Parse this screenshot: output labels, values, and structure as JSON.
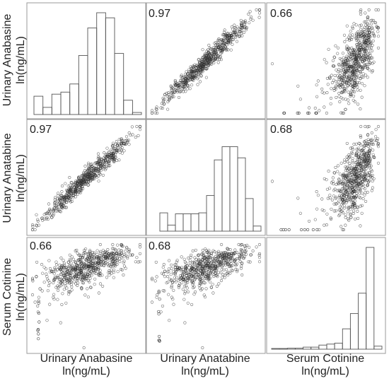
{
  "chart_data": {
    "type": "scatter",
    "variables": [
      {
        "label": "Urinary Anabasine",
        "unit": "ln(ng/mL)"
      },
      {
        "label": "Urinary Anatabine",
        "unit": "ln(ng/mL)"
      },
      {
        "label": "Serum Cotinine",
        "unit": "ln(ng/mL)"
      }
    ],
    "correlations": {
      "anabasine_anatabine": "0.97",
      "anabasine_cotinine": "0.66",
      "anatabine_cotinine": "0.68"
    },
    "histograms": {
      "anabasine_relative_counts": [
        0.18,
        0.07,
        0.2,
        0.22,
        0.3,
        0.58,
        0.85,
        1.0,
        0.95,
        0.6,
        0.14,
        0.02
      ],
      "anatabine_relative_counts": [
        0.18,
        0.06,
        0.17,
        0.17,
        0.17,
        0.18,
        0.35,
        0.7,
        0.83,
        0.83,
        0.72,
        0.32,
        0.05
      ],
      "cotinine_relative_counts": [
        0.005,
        0.005,
        0.01,
        0.01,
        0.02,
        0.02,
        0.04,
        0.05,
        0.06,
        0.2,
        0.35,
        0.55,
        1.0,
        0.03
      ]
    },
    "grid": false,
    "legend": "none"
  }
}
